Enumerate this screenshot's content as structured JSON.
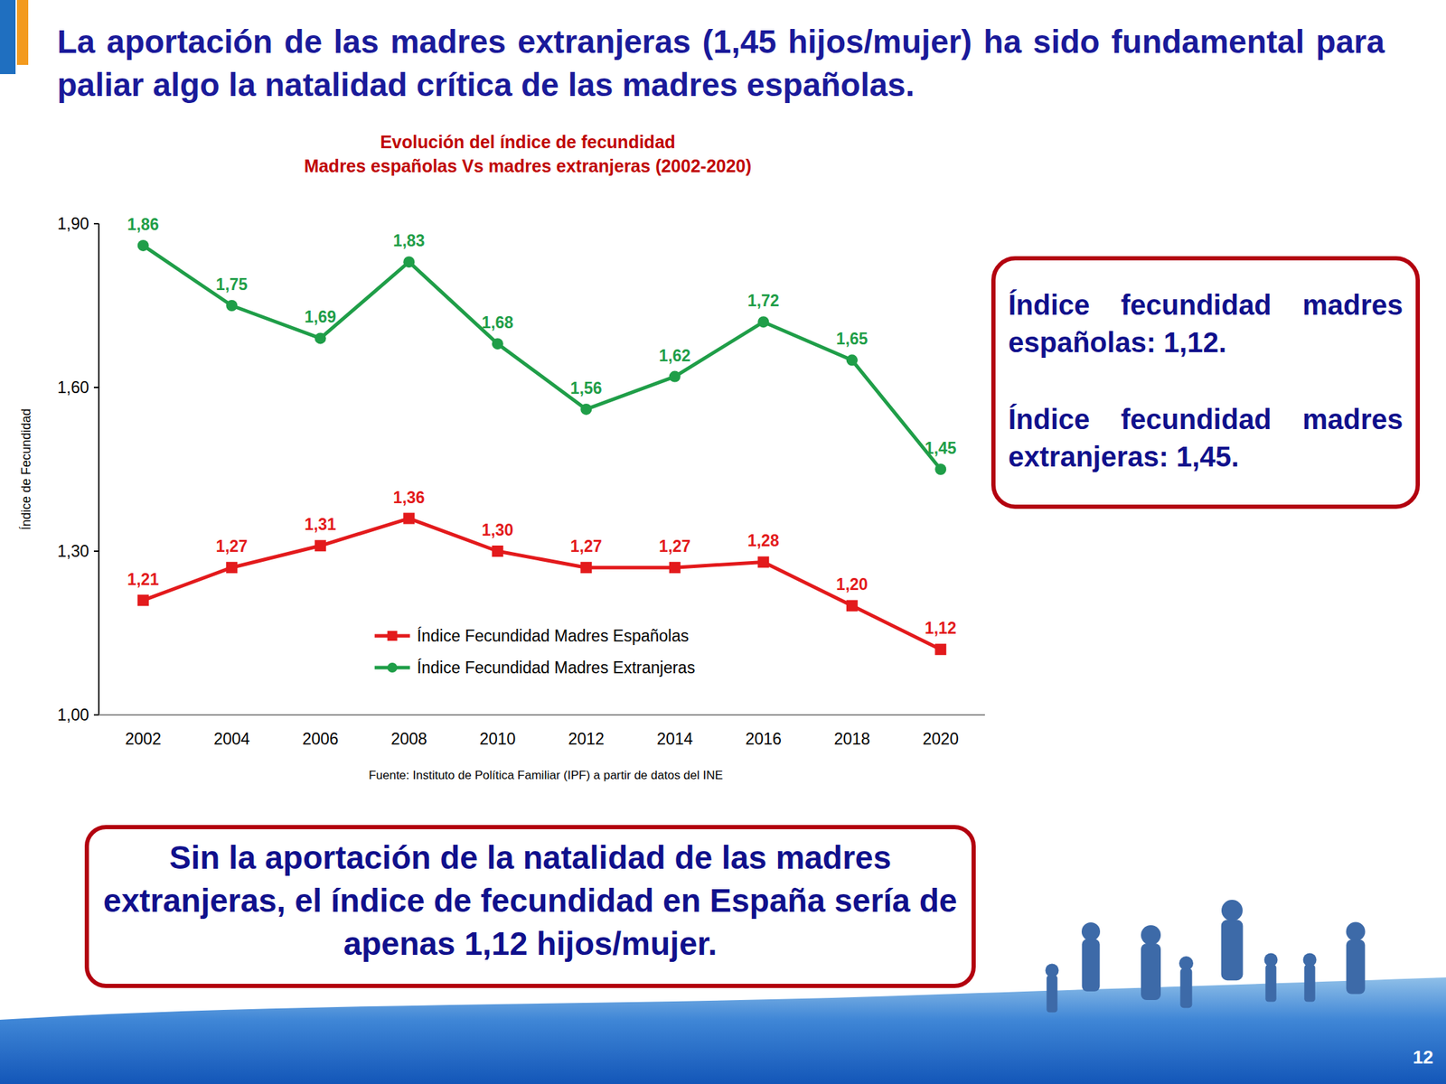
{
  "header": {
    "title": "La aportación de las madres extranjeras (1,45 hijos/mujer) ha sido fundamental para paliar algo la natalidad crítica de las madres españolas."
  },
  "chart_data": {
    "type": "line",
    "title": "Evolución del índice de fecundidad",
    "subtitle": "Madres españolas Vs madres extranjeras (2002-2020)",
    "y_label": "Índice de Fecundidad",
    "source": "Fuente: Instituto de Política Familiar (IPF) a partir de datos del INE",
    "categories": [
      "2002",
      "2004",
      "2006",
      "2008",
      "2010",
      "2012",
      "2014",
      "2016",
      "2018",
      "2020"
    ],
    "series": [
      {
        "name": "Índice Fecundidad Madres Españolas",
        "color": "#e31a1c",
        "marker": "square",
        "values": [
          1.21,
          1.27,
          1.31,
          1.36,
          1.3,
          1.27,
          1.27,
          1.28,
          1.2,
          1.12
        ],
        "value_labels": [
          "1,21",
          "1,27",
          "1,31",
          "1,36",
          "1,30",
          "1,27",
          "1,27",
          "1,28",
          "1,20",
          "1,12"
        ]
      },
      {
        "name": "Índice Fecundidad Madres Extranjeras",
        "color": "#1f9e48",
        "marker": "circle",
        "values": [
          1.86,
          1.75,
          1.69,
          1.83,
          1.68,
          1.56,
          1.62,
          1.72,
          1.65,
          1.45
        ],
        "value_labels": [
          "1,86",
          "1,75",
          "1,69",
          "1,83",
          "1,68",
          "1,56",
          "1,62",
          "1,72",
          "1,65",
          "1,45"
        ]
      }
    ],
    "ylim": [
      1.0,
      1.9
    ],
    "yticks": [
      {
        "value": 1.0,
        "label": "1,00"
      },
      {
        "value": 1.3,
        "label": "1,30"
      },
      {
        "value": 1.6,
        "label": "1,60"
      },
      {
        "value": 1.9,
        "label": "1,90"
      }
    ],
    "grid": false,
    "legend": "lower center",
    "data_labels": true
  },
  "callout": {
    "lines": [
      "Índice fecundidad madres españolas: 1,12.",
      "Índice fecundidad madres extranjeras: 1,45."
    ]
  },
  "conclusion": "Sin la aportación de la natalidad de las madres extranjeras, el índice de fecundidad en España sería de apenas 1,12 hijos/mujer.",
  "page_number": "12"
}
